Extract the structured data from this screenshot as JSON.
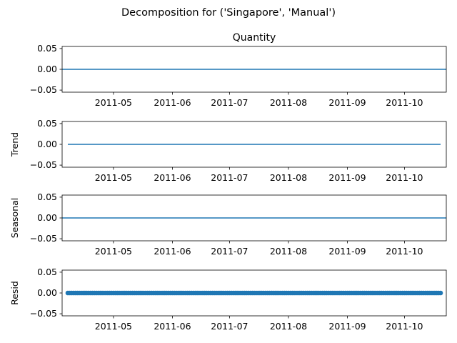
{
  "figure": {
    "suptitle": "Decomposition for ('Singapore', 'Manual')"
  },
  "chart_data": [
    {
      "type": "line",
      "title": "Quantity",
      "ylabel": "",
      "xlim": [
        "2011-04-04",
        "2011-10-23"
      ],
      "ylim": [
        -0.055,
        0.055
      ],
      "x_ticks": [
        "2011-05",
        "2011-06",
        "2011-07",
        "2011-08",
        "2011-09",
        "2011-10"
      ],
      "y_ticks": [
        "0.05",
        "0.00",
        "−0.05"
      ],
      "series": [
        {
          "x": [
            "2011-04-04",
            "2011-10-23"
          ],
          "y": [
            0.0,
            0.0
          ],
          "style": "line",
          "color": "#1f77b4"
        }
      ]
    },
    {
      "type": "line",
      "title": "",
      "ylabel": "Trend",
      "xlim": [
        "2011-04-04",
        "2011-10-23"
      ],
      "ylim": [
        -0.055,
        0.055
      ],
      "x_ticks": [
        "2011-05",
        "2011-06",
        "2011-07",
        "2011-08",
        "2011-09",
        "2011-10"
      ],
      "y_ticks": [
        "0.05",
        "0.00",
        "−0.05"
      ],
      "series": [
        {
          "x": [
            "2011-04-07",
            "2011-10-20"
          ],
          "y": [
            0.0,
            0.0
          ],
          "style": "line",
          "color": "#1f77b4"
        }
      ]
    },
    {
      "type": "line",
      "title": "",
      "ylabel": "Seasonal",
      "xlim": [
        "2011-04-04",
        "2011-10-23"
      ],
      "ylim": [
        -0.055,
        0.055
      ],
      "x_ticks": [
        "2011-05",
        "2011-06",
        "2011-07",
        "2011-08",
        "2011-09",
        "2011-10"
      ],
      "y_ticks": [
        "0.05",
        "0.00",
        "−0.05"
      ],
      "series": [
        {
          "x": [
            "2011-04-04",
            "2011-10-23"
          ],
          "y": [
            0.0,
            0.0
          ],
          "style": "line",
          "color": "#1f77b4"
        }
      ]
    },
    {
      "type": "scatter",
      "title": "",
      "ylabel": "Resid",
      "xlim": [
        "2011-04-04",
        "2011-10-23"
      ],
      "ylim": [
        -0.055,
        0.055
      ],
      "x_ticks": [
        "2011-05",
        "2011-06",
        "2011-07",
        "2011-08",
        "2011-09",
        "2011-10"
      ],
      "y_ticks": [
        "0.05",
        "0.00",
        "−0.05"
      ],
      "series": [
        {
          "x_start": "2011-04-07",
          "x_end": "2011-10-20",
          "frequency": "daily",
          "y": 0.0,
          "style": "markers",
          "color": "#1f77b4"
        }
      ]
    }
  ]
}
